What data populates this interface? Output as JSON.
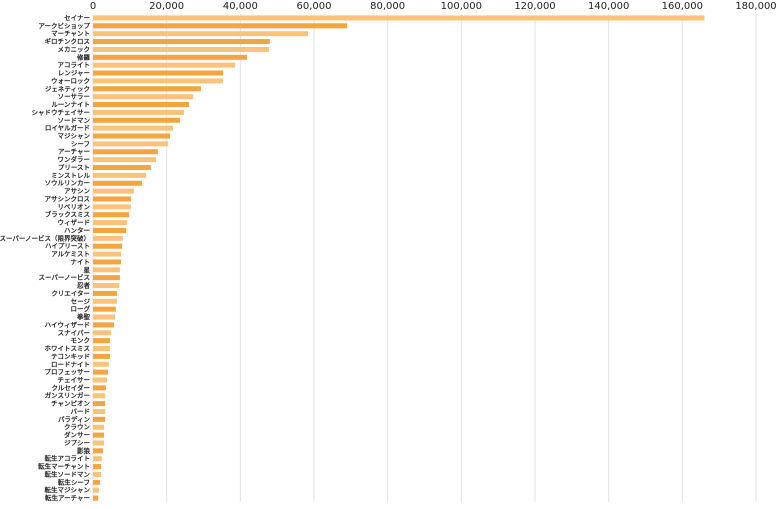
{
  "chart_data": {
    "type": "hbar",
    "categories": [
      "セイナー",
      "アークビショップ",
      "マーチャント",
      "ギロチンクロス",
      "メカニック",
      "修羅",
      "アコライト",
      "レンジャー",
      "ウォーロック",
      "ジェネティック",
      "ソーサラー",
      "ルーンナイト",
      "シャドウチェイサー",
      "ソードマン",
      "ロイヤルガード",
      "マジシャン",
      "シーフ",
      "アーチャー",
      "ワンダラー",
      "プリースト",
      "ミンストレル",
      "ソウルリンカー",
      "アサシン",
      "アサシンクロス",
      "リベリオン",
      "ブラックスミス",
      "ウィザード",
      "ハンター",
      "スーパーノービス（限界突破）",
      "ハイプリースト",
      "アルケミスト",
      "ナイト",
      "星",
      "スーパーノービス",
      "忍者",
      "クリエイター",
      "セージ",
      "ローグ",
      "拳聖",
      "ハイウィザード",
      "スナイパー",
      "モンク",
      "ホワイトスミス",
      "テコンキッド",
      "ロードナイト",
      "プロフェッサー",
      "チェイサー",
      "クルセイダー",
      "ガンスリンガー",
      "チャンピオン",
      "バード",
      "パラディン",
      "クラウン",
      "ダンサー",
      "ジプシー",
      "影狼",
      "転生アコライト",
      "転生マーチャント",
      "転生ソードマン",
      "転生シーフ",
      "転生マジシャン",
      "転生アーチャー"
    ],
    "values": [
      166000,
      69000,
      58400,
      48000,
      47800,
      41800,
      38600,
      35300,
      35300,
      29300,
      27200,
      26100,
      24700,
      23600,
      21700,
      20900,
      20400,
      17600,
      17100,
      15700,
      14400,
      13300,
      11100,
      10300,
      10300,
      9800,
      9200,
      9000,
      8100,
      7900,
      7600,
      7600,
      7300,
      7300,
      7100,
      6500,
      6500,
      6200,
      6000,
      5700,
      4900,
      4600,
      4600,
      4600,
      4300,
      4100,
      3800,
      3500,
      3300,
      3300,
      3300,
      3300,
      3000,
      3000,
      3000,
      2700,
      2400,
      2200,
      2200,
      1900,
      1600,
      1400
    ],
    "colors": [
      "#fbc27c",
      "#f5a53f"
    ],
    "xlim": [
      0,
      180000
    ],
    "xticks": [
      0,
      {
        "value": 20000,
        "label": "20,000"
      },
      {
        "value": 40000,
        "label": "40,000"
      },
      {
        "value": 60000,
        "label": "60,000"
      },
      {
        "value": 80000,
        "label": "80,000"
      },
      {
        "value": 100000,
        "label": "100,000"
      },
      {
        "value": 120000,
        "label": "120,000"
      },
      {
        "value": 140000,
        "label": "140,000"
      },
      {
        "value": 160000,
        "label": "160,000"
      },
      {
        "value": 180000,
        "label": "180,000"
      }
    ],
    "grid": true
  }
}
